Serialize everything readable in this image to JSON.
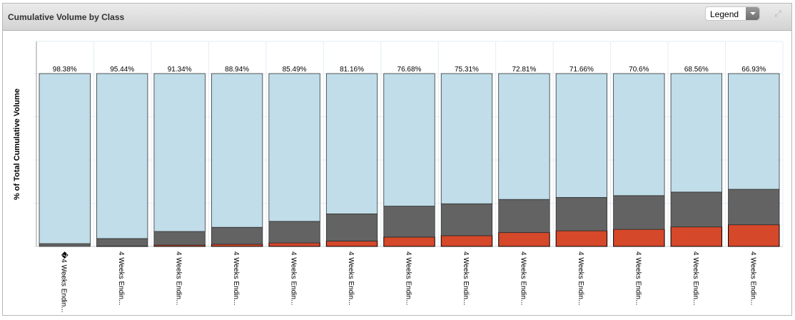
{
  "panel": {
    "title": "Cumulative Volume by Class",
    "legend_label": "Legend"
  },
  "chart_data": {
    "type": "bar",
    "stacked": true,
    "title": "Cumulative Volume by Class",
    "ylabel": "% of Total Cumulative Volume",
    "xlabel": "",
    "ylim": [
      0,
      100
    ],
    "categories": [
      "�4 Weeks Endin...",
      "4 Weeks Endin...",
      "4 Weeks Endin...",
      "4 Weeks Endin...",
      "4 Weeks Endin...",
      "4 Weeks Endin...",
      "4 Weeks Endin...",
      "4 Weeks Endin...",
      "4 Weeks Endin...",
      "4 Weeks Endin...",
      "4 Weeks Endin...",
      "4 Weeks Endin...",
      "4 Weeks Endin..."
    ],
    "series": [
      {
        "name": "red",
        "color": "#d5482a",
        "values": [
          0,
          0.21,
          0.82,
          1.29,
          2.03,
          3.12,
          5.44,
          6.26,
          8.05,
          9.06,
          9.9,
          11.32,
          12.57
        ]
      },
      {
        "name": "dark gray",
        "color": "#636363",
        "values": [
          1.62,
          4.35,
          7.84,
          9.77,
          12.48,
          15.72,
          17.88,
          18.43,
          19.14,
          19.28,
          19.5,
          20.12,
          20.49
        ]
      },
      {
        "name": "light blue",
        "color": "#c0dde9",
        "values": [
          98.38,
          95.44,
          91.34,
          88.94,
          85.49,
          81.16,
          76.68,
          75.31,
          72.81,
          71.66,
          70.6,
          68.56,
          66.93
        ]
      }
    ],
    "labels": [
      {
        "red": "",
        "gray": "1.62%",
        "blue": "98.38%"
      },
      {
        "red": "0.21%",
        "gray": "4.35%",
        "blue": "95.44%"
      },
      {
        "red": "0.82%",
        "gray": "7.84%",
        "blue": "91.34%"
      },
      {
        "red": "1.29%",
        "gray": "9.77%",
        "blue": "88.94%"
      },
      {
        "red": "2.03%",
        "gray": "12.48%",
        "blue": "85.49%"
      },
      {
        "red": "3.12%",
        "gray": "15.72%",
        "blue": "81.16%"
      },
      {
        "red": "5.44%",
        "gray": "17.88%",
        "blue": "76.68%"
      },
      {
        "red": "6.26%",
        "gray": "18.43%",
        "blue": "75.31%"
      },
      {
        "red": "8.05%",
        "gray": "19.14%",
        "blue": "72.81%"
      },
      {
        "red": "9.06%",
        "gray": "19.28%",
        "blue": "71.66%"
      },
      {
        "red": "9.9%",
        "gray": "19.5%",
        "blue": "70.6%"
      },
      {
        "red": "11.32%",
        "gray": "20.12%",
        "blue": "68.56%"
      },
      {
        "red": "12.57%",
        "gray": "20.49%",
        "blue": "66.93%"
      }
    ],
    "grid": true,
    "legend": "hidden"
  }
}
